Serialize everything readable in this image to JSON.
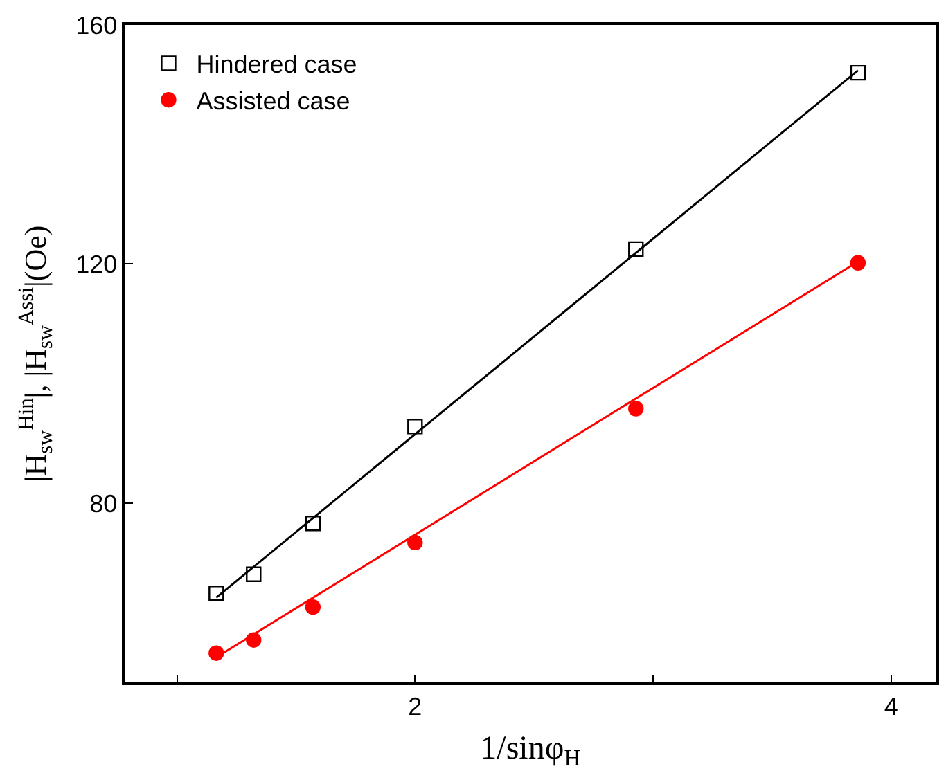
{
  "chart_data": {
    "type": "scatter",
    "xlabel": "1/sinφ$_{H}$",
    "ylabel": "|H$_{sw}$$^{Hin}$|, |H$_{sw}$$^{Assi}$|(Oe)",
    "xlim": [
      0.78,
      4.19
    ],
    "xticks": [
      {
        "value": 1,
        "label": null
      },
      2,
      {
        "value": 3,
        "label": null
      },
      4
    ],
    "ylim": [
      50,
      160
    ],
    "yticks": [
      80,
      120,
      160
    ],
    "legend": "top left",
    "series": [
      {
        "name": "Hindered case",
        "color": "#000000",
        "marker": "square-open",
        "x": [
          1.165,
          1.322,
          1.571,
          2,
          2.928,
          3.861
        ],
        "values": [
          64.9,
          68.1,
          76.6,
          92.8,
          122.5,
          152
        ]
      },
      {
        "name": "Assisted case",
        "color": "#ff0000",
        "marker": "circle",
        "x": [
          1.165,
          1.322,
          1.571,
          2,
          2.928,
          3.861
        ],
        "values": [
          54.9,
          57.1,
          62.6,
          73.4,
          95.8,
          120.2
        ]
      },
      {
        "type": "line",
        "color": "#000000",
        "marker": "none",
        "x": [
          1.165,
          3.861
        ],
        "values": [
          64.2,
          152.4
        ]
      },
      {
        "type": "line",
        "color": "#ff0000",
        "marker": "none",
        "x": [
          1.165,
          3.861
        ],
        "values": [
          54.2,
          120.4
        ]
      }
    ]
  }
}
